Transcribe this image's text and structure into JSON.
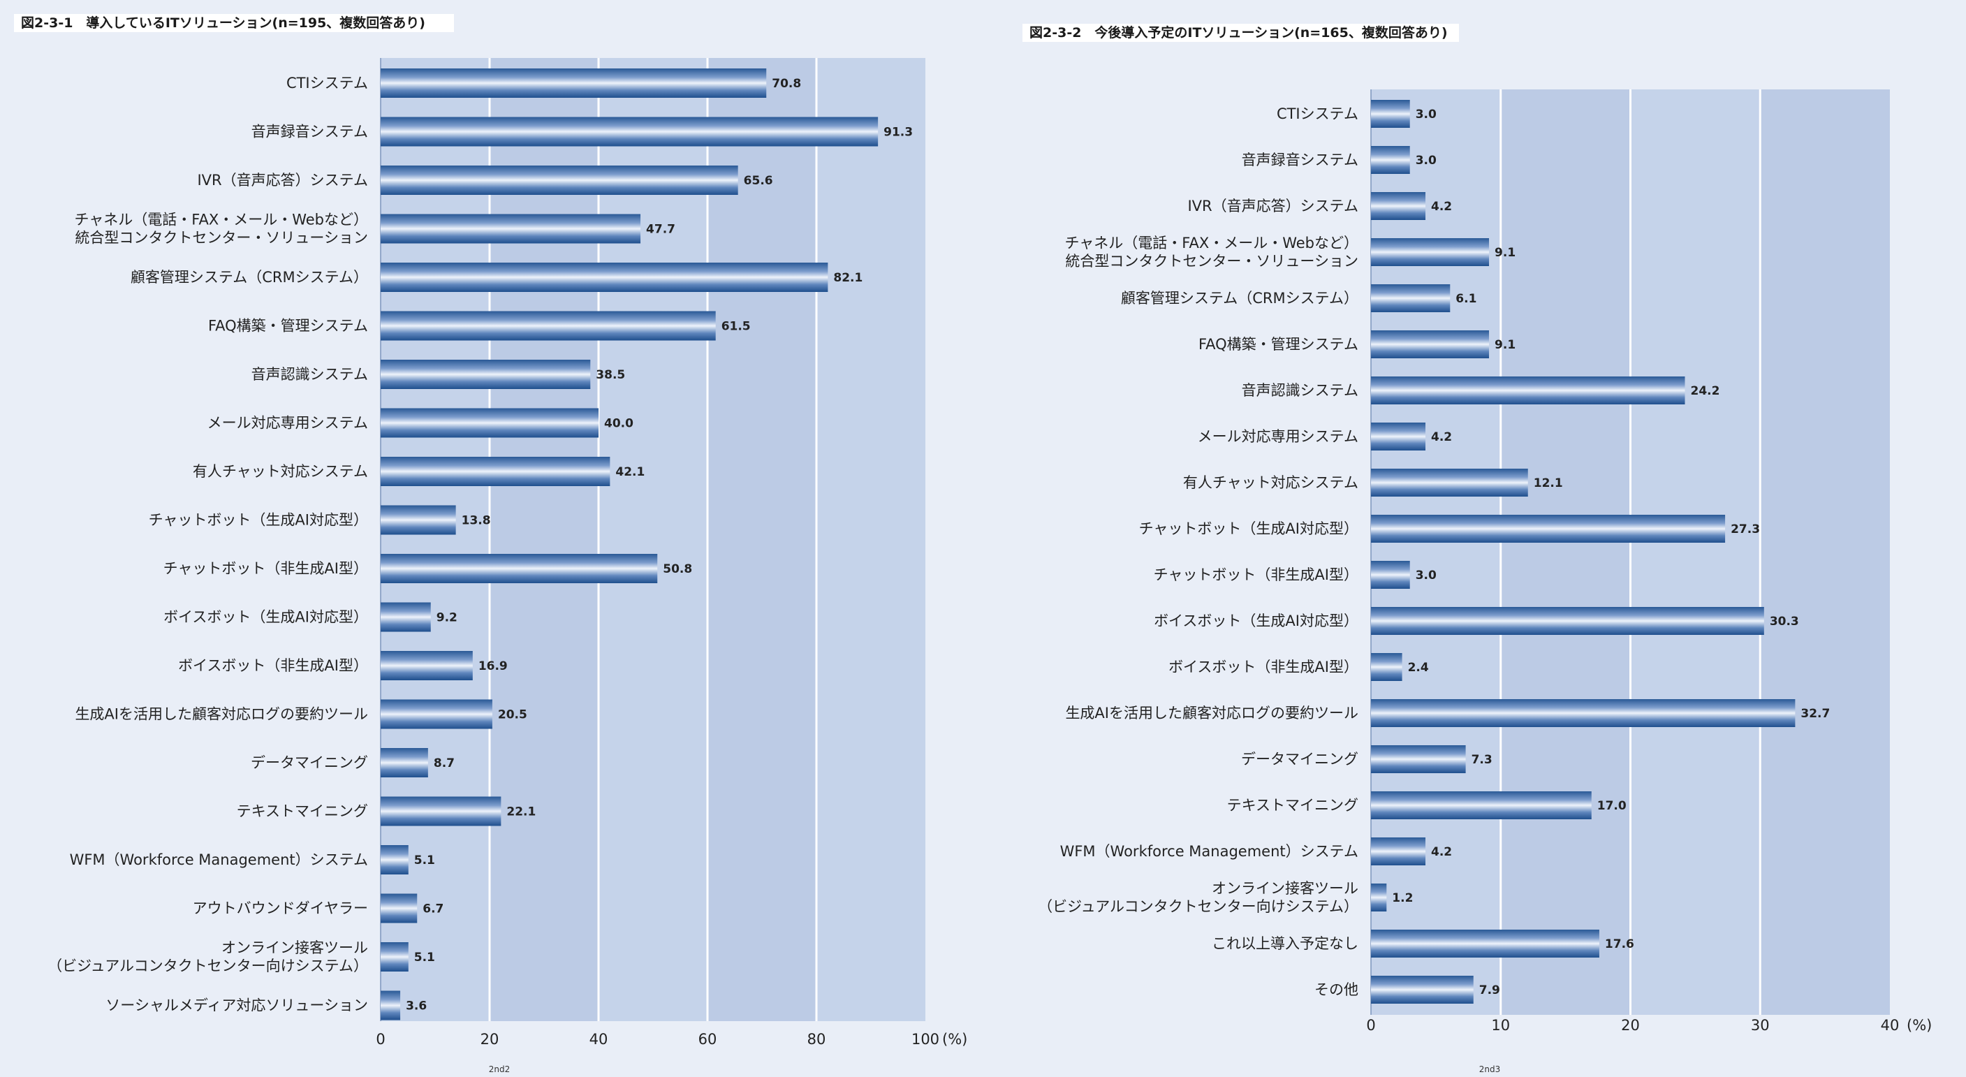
{
  "chart_data": [
    {
      "type": "bar",
      "orientation": "horizontal",
      "title": "図2-3-1　導入しているITソリューション(n=195、複数回答あり)",
      "unit": "(%)",
      "xlim": [
        0,
        100
      ],
      "ticks": [
        "0",
        "20",
        "40",
        "60",
        "80",
        "100"
      ],
      "footer": "2nd2",
      "categories": [
        [
          "CTIシステム"
        ],
        [
          "音声録音システム"
        ],
        [
          "IVR（音声応答）システム"
        ],
        [
          "チャネル（電話・FAX・メール・Webなど）",
          "統合型コンタクトセンター・ソリューション"
        ],
        [
          "顧客管理システム（CRMシステム）"
        ],
        [
          "FAQ構築・管理システム"
        ],
        [
          "音声認識システム"
        ],
        [
          "メール対応専用システム"
        ],
        [
          "有人チャット対応システム"
        ],
        [
          "チャットボット（生成AI対応型）"
        ],
        [
          "チャットボット（非生成AI型）"
        ],
        [
          "ボイスボット（生成AI対応型）"
        ],
        [
          "ボイスボット（非生成AI型）"
        ],
        [
          "生成AIを活用した顧客対応ログの要約ツール"
        ],
        [
          "データマイニング"
        ],
        [
          "テキストマイニング"
        ],
        [
          "WFM（Workforce Management）システム"
        ],
        [
          "アウトバウンドダイヤラー"
        ],
        [
          "オンライン接客ツール",
          "（ビジュアルコンタクトセンター向けシステム）"
        ],
        [
          "ソーシャルメディア対応ソリューション"
        ]
      ],
      "values": [
        70.8,
        91.3,
        65.6,
        47.7,
        82.1,
        61.5,
        38.5,
        40.0,
        42.1,
        13.8,
        50.8,
        9.2,
        16.9,
        20.5,
        8.7,
        22.1,
        5.1,
        6.7,
        5.1,
        3.6
      ],
      "value_labels": [
        "70.8",
        "91.3",
        "65.6",
        "47.7",
        "82.1",
        "61.5",
        "38.5",
        "40.0",
        "42.1",
        "13.8",
        "50.8",
        "9.2",
        "16.9",
        "20.5",
        "8.7",
        "22.1",
        "5.1",
        "6.7",
        "5.1",
        "3.6"
      ]
    },
    {
      "type": "bar",
      "orientation": "horizontal",
      "title": "図2-3-2　今後導入予定のITソリューション(n=165、複数回答あり)",
      "unit": "(%)",
      "xlim": [
        0,
        40
      ],
      "ticks": [
        "0",
        "10",
        "20",
        "30",
        "40"
      ],
      "footer": "2nd3",
      "categories": [
        [
          "CTIシステム"
        ],
        [
          "音声録音システム"
        ],
        [
          "IVR（音声応答）システム"
        ],
        [
          "チャネル（電話・FAX・メール・Webなど）",
          "統合型コンタクトセンター・ソリューション"
        ],
        [
          "顧客管理システム（CRMシステム）"
        ],
        [
          "FAQ構築・管理システム"
        ],
        [
          "音声認識システム"
        ],
        [
          "メール対応専用システム"
        ],
        [
          "有人チャット対応システム"
        ],
        [
          "チャットボット（生成AI対応型）"
        ],
        [
          "チャットボット（非生成AI型）"
        ],
        [
          "ボイスボット（生成AI対応型）"
        ],
        [
          "ボイスボット（非生成AI型）"
        ],
        [
          "生成AIを活用した顧客対応ログの要約ツール"
        ],
        [
          "データマイニング"
        ],
        [
          "テキストマイニング"
        ],
        [
          "WFM（Workforce Management）システム"
        ],
        [
          "オンライン接客ツール",
          "（ビジュアルコンタクトセンター向けシステム）"
        ],
        [
          "これ以上導入予定なし"
        ],
        [
          "その他"
        ]
      ],
      "values": [
        3.0,
        3.0,
        4.2,
        9.1,
        6.1,
        9.1,
        24.2,
        4.2,
        12.1,
        27.3,
        3.0,
        30.3,
        2.4,
        32.7,
        7.3,
        17.0,
        4.2,
        1.2,
        17.6,
        7.9
      ],
      "value_labels": [
        "3.0",
        "3.0",
        "4.2",
        "9.1",
        "6.1",
        "9.1",
        "24.2",
        "4.2",
        "12.1",
        "27.3",
        "3.0",
        "30.3",
        "2.4",
        "32.7",
        "7.3",
        "17.0",
        "4.2",
        "1.2",
        "17.6",
        "7.9"
      ]
    }
  ],
  "colors": {
    "page_bg": "#e9eef7",
    "plot_bg": "#c5d3ea",
    "gridline": "#ffffff",
    "bar_dark": "#1f4f8d",
    "bar_mid": "#5f86bd",
    "bar_light": "#eef3fb",
    "title_bg": "#ffffff"
  }
}
